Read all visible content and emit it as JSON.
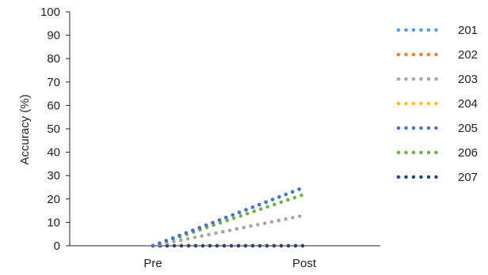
{
  "chart_data": {
    "type": "line",
    "title": "",
    "xlabel": "",
    "ylabel": "Accuracy (%)",
    "categories": [
      "Pre",
      "Post"
    ],
    "ylim": [
      0,
      100
    ],
    "yticks": [
      0,
      10,
      20,
      30,
      40,
      50,
      60,
      70,
      80,
      90,
      100
    ],
    "grid": false,
    "legend_position": "right",
    "line_style": "dotted",
    "series": [
      {
        "name": "201",
        "values": [
          0,
          25
        ],
        "color": "#5b9bd5"
      },
      {
        "name": "202",
        "values": [
          0,
          0
        ],
        "color": "#ed7d31"
      },
      {
        "name": "203",
        "values": [
          0,
          13
        ],
        "color": "#a5a5a5"
      },
      {
        "name": "204",
        "values": [
          0,
          0
        ],
        "color": "#ffc000"
      },
      {
        "name": "205",
        "values": [
          0,
          25
        ],
        "color": "#4472c4"
      },
      {
        "name": "206",
        "values": [
          0,
          22
        ],
        "color": "#70ad47"
      },
      {
        "name": "207",
        "values": [
          0,
          0
        ],
        "color": "#264478"
      }
    ]
  }
}
